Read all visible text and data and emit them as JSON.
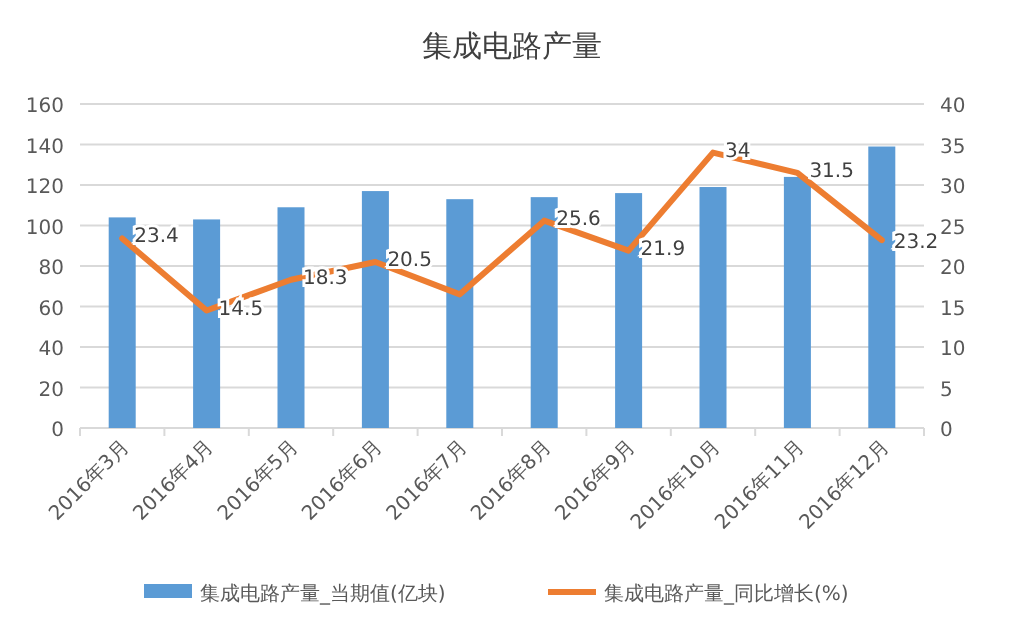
{
  "chart_data": {
    "type": "bar",
    "title": "集成电路产量",
    "categories": [
      "2016年3月",
      "2016年4月",
      "2016年5月",
      "2016年6月",
      "2016年7月",
      "2016年8月",
      "2016年9月",
      "2016年10月",
      "2016年11月",
      "2016年12月"
    ],
    "series": [
      {
        "name": "集成电路产量_当期值(亿块)",
        "color": "#5b9bd5",
        "values": [
          104,
          103,
          109,
          117,
          113,
          114,
          116,
          119,
          124,
          139
        ]
      },
      {
        "name": "集成电路产量_同比增长(%)",
        "type": "line",
        "axis": "y2",
        "color": "#ed7d31",
        "values": [
          23.4,
          14.5,
          18.3,
          20.5,
          16.5,
          25.6,
          21.9,
          34,
          31.5,
          23.2
        ],
        "value_labels": [
          "23.4",
          "14.5",
          "18.3",
          "20.5",
          null,
          "25.6",
          "21.9",
          "34",
          "31.5",
          "23.2"
        ]
      }
    ],
    "ylim": [
      0,
      160
    ],
    "yticks": [
      0,
      20,
      40,
      60,
      80,
      100,
      120,
      140,
      160
    ],
    "y2lim": [
      0,
      40
    ],
    "y2ticks": [
      0,
      5,
      10,
      15,
      20,
      25,
      30,
      35,
      40
    ],
    "grid": "y",
    "legend": "bottom",
    "marker": "none"
  }
}
